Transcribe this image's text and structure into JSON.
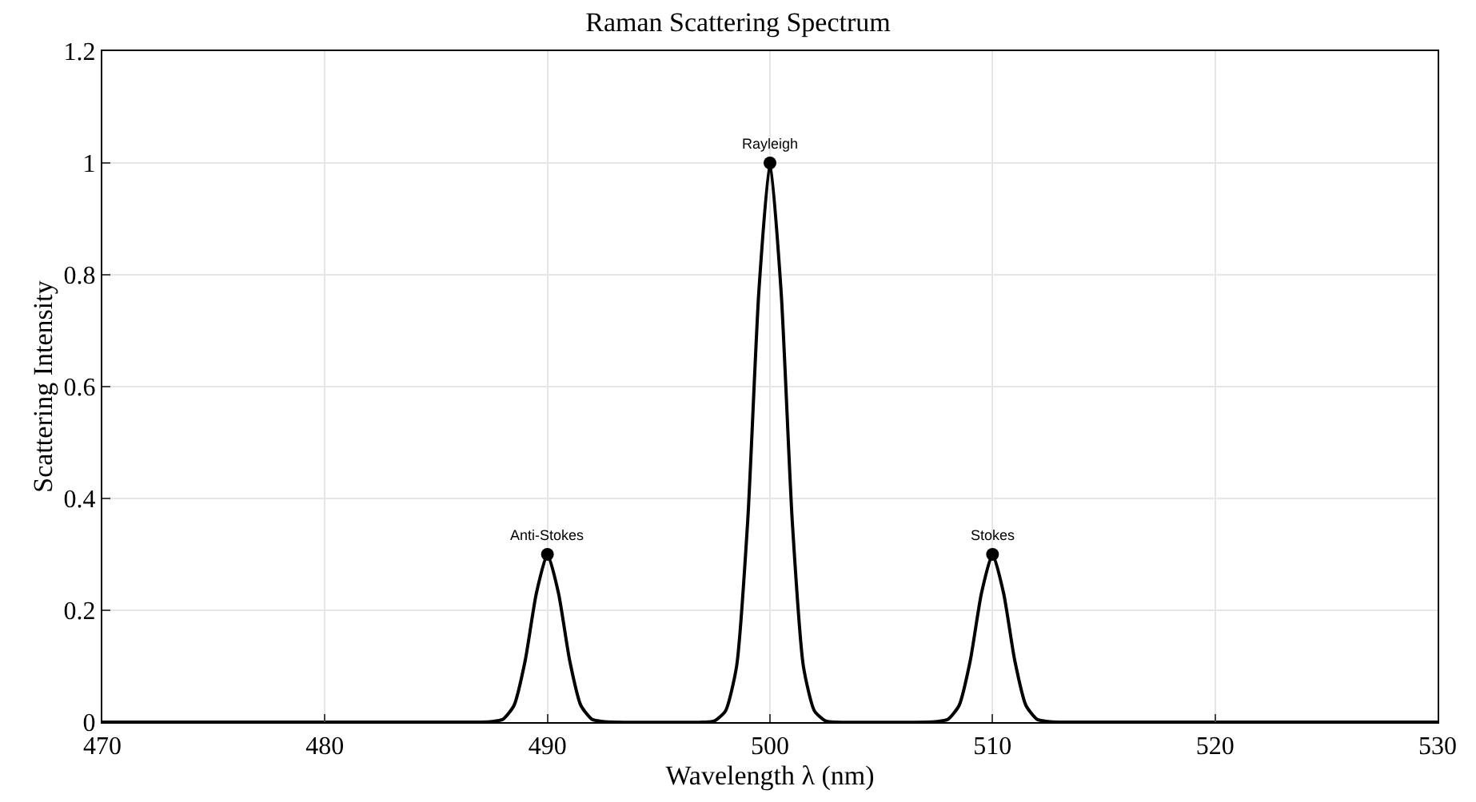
{
  "chart_data": {
    "type": "line",
    "title": "Raman Scattering Spectrum",
    "xlabel": "Wavelength λ (nm)",
    "ylabel": "Scattering Intensity",
    "series": [
      {
        "color": "#000000",
        "x": [
          470,
          487,
          487.5,
          488,
          488.5,
          489,
          489.5,
          490,
          490.5,
          491,
          491.5,
          492,
          492.5,
          493,
          497,
          497.5,
          498,
          498.5,
          499,
          499.5,
          500,
          500.5,
          501,
          501.5,
          502,
          502.5,
          503,
          507,
          507.5,
          508,
          508.5,
          509,
          509.5,
          510,
          510.5,
          511,
          511.5,
          512,
          512.5,
          513,
          530
        ],
        "values": [
          0,
          0,
          0.001,
          0.005,
          0.03,
          0.11,
          0.23,
          0.3,
          0.23,
          0.11,
          0.03,
          0.005,
          0.001,
          0,
          0,
          0.002,
          0.02,
          0.1,
          0.36,
          0.77,
          1,
          0.77,
          0.36,
          0.1,
          0.02,
          0.002,
          0,
          0,
          0.001,
          0.005,
          0.03,
          0.11,
          0.23,
          0.3,
          0.23,
          0.11,
          0.03,
          0.005,
          0.001,
          0,
          0
        ]
      },
      {
        "type": "scatter",
        "color": "#000000",
        "marker": "circle",
        "x": [
          490,
          500,
          510
        ],
        "values": [
          0.3,
          1,
          0.3
        ]
      }
    ],
    "annotations": [
      {
        "text": "Anti-Stokes",
        "x": 490,
        "y": 0.3
      },
      {
        "text": "Rayleigh",
        "x": 500,
        "y": 1
      },
      {
        "text": "Stokes",
        "x": 510,
        "y": 0.3
      }
    ],
    "xlim": [
      470,
      530
    ],
    "xticks": [
      470,
      480,
      490,
      500,
      510,
      520,
      530
    ],
    "ylim": [
      0,
      1.2
    ],
    "yticks": [
      0,
      0.2,
      0.4,
      0.6,
      0.8,
      1,
      1.2
    ],
    "grid": true
  }
}
